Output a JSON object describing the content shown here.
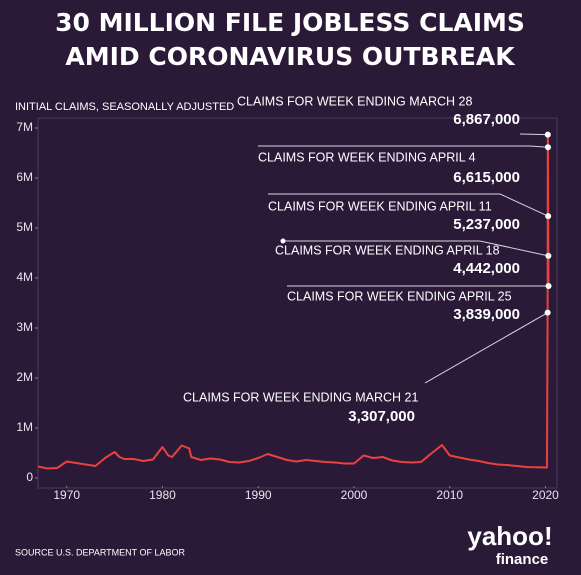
{
  "chart_data": {
    "type": "line",
    "title": "30 MILLION FILE JOBLESS CLAIMS",
    "subtitle": "AMID CORONAVIRUS OUTBREAK",
    "y_label": "INITIAL CLAIMS, SEASONALLY ADJUSTED",
    "source": "SOURCE  U.S. DEPARTMENT OF LABOR",
    "logo": "yahoo!",
    "logo_sub": "finance",
    "x": [
      1967,
      1968,
      1969,
      1970,
      1971,
      1972,
      1973,
      1974,
      1975,
      1975.5,
      1976,
      1977,
      1978,
      1979,
      1980,
      1980.6,
      1981,
      1982,
      1982.8,
      1983,
      1984,
      1985,
      1986,
      1987,
      1988,
      1989,
      1990,
      1991,
      1992,
      1993,
      1994,
      1995,
      1996,
      1997,
      1998,
      1999,
      2000,
      2001,
      2002,
      2003,
      2004,
      2005,
      2006,
      2007,
      2008,
      2009.2,
      2010,
      2011,
      2012,
      2013,
      2014,
      2015,
      2016,
      2017,
      2018,
      2019,
      2020.15,
      2020.22,
      2020.24,
      2020.26,
      2020.28,
      2020.3,
      2020.32
    ],
    "series": [
      {
        "color": "#e8423f",
        "values": [
          230000,
          190000,
          200000,
          330000,
          300000,
          270000,
          240000,
          400000,
          520000,
          420000,
          380000,
          380000,
          340000,
          370000,
          620000,
          450000,
          420000,
          650000,
          590000,
          420000,
          360000,
          390000,
          370000,
          320000,
          310000,
          340000,
          400000,
          480000,
          420000,
          360000,
          330000,
          360000,
          340000,
          320000,
          310000,
          290000,
          290000,
          450000,
          400000,
          420000,
          350000,
          320000,
          310000,
          320000,
          480000,
          660000,
          450000,
          410000,
          370000,
          340000,
          300000,
          270000,
          260000,
          240000,
          220000,
          215000,
          211000,
          3307000,
          6867000,
          6615000,
          5237000,
          4442000,
          3839000
        ],
        "value_labels": [
          null,
          null,
          null,
          null,
          null,
          null,
          null,
          null,
          null,
          null,
          null,
          null,
          null,
          null,
          null,
          null,
          null,
          null,
          null,
          null,
          null,
          null,
          null,
          null,
          null,
          null,
          null,
          null,
          null,
          null,
          null,
          null,
          null,
          null,
          null,
          null,
          null,
          null,
          null,
          null,
          null,
          null,
          null,
          null,
          null,
          null,
          null,
          null,
          null,
          null,
          null,
          null,
          null,
          null,
          null,
          null,
          null,
          "3,307,000",
          "6,867,000",
          "6,615,000",
          "5,237,000",
          "4,442,000",
          "3,839,000"
        ]
      }
    ],
    "annotations": [
      "CLAIMS FOR WEEK ENDING MARCH 21",
      "CLAIMS FOR WEEK ENDING MARCH 28",
      "CLAIMS FOR WEEK ENDING APRIL 4",
      "CLAIMS FOR WEEK ENDING APRIL 11",
      "CLAIMS FOR WEEK ENDING APRIL 18",
      "CLAIMS FOR WEEK ENDING APRIL 25"
    ],
    "xlim": [
      1967,
      2021.2
    ],
    "xticks": [
      1970,
      1980,
      1990,
      2000,
      2010,
      2020
    ],
    "ylim": [
      0,
      7000000
    ],
    "yticks": [
      {
        "value": 0,
        "label": "0"
      },
      {
        "value": 1000000,
        "label": "1M"
      },
      {
        "value": 2000000,
        "label": "2M"
      },
      {
        "value": 3000000,
        "label": "3M"
      },
      {
        "value": 4000000,
        "label": "4M"
      },
      {
        "value": 5000000,
        "label": "5M"
      },
      {
        "value": 6000000,
        "label": "6M"
      },
      {
        "value": 7000000,
        "label": "7M"
      }
    ],
    "grid": false
  }
}
